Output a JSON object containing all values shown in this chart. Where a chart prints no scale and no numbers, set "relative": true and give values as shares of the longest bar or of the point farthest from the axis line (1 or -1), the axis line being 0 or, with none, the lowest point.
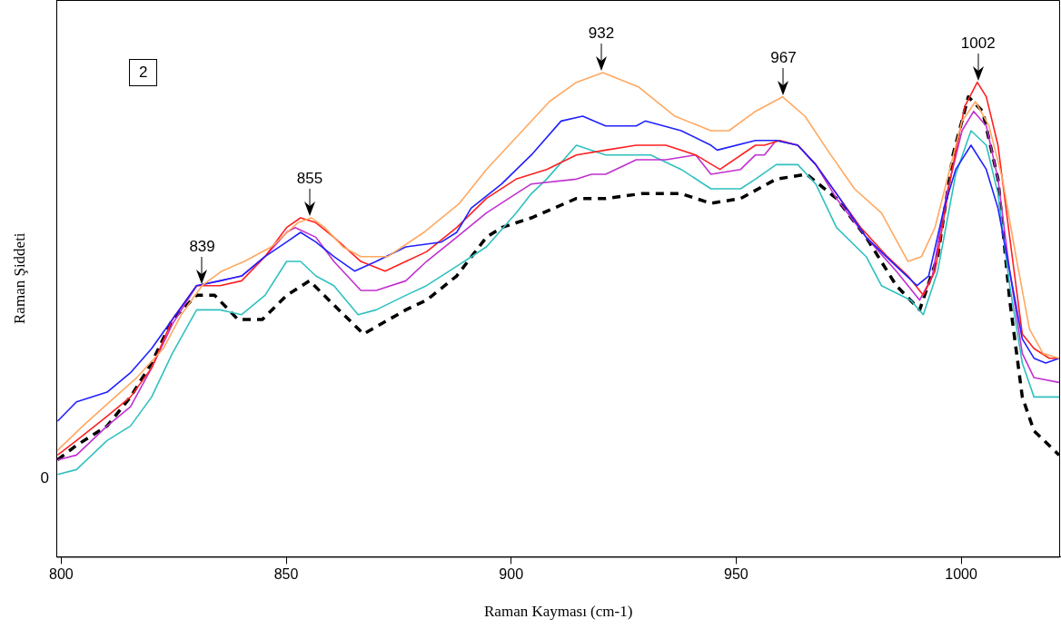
{
  "chart_data": {
    "type": "line",
    "relative": true,
    "xlabel": "Raman Kayması (cm-1)",
    "ylabel": "Raman Şiddeti",
    "xlim": [
      799,
      1022
    ],
    "xticks": [
      800,
      850,
      900,
      950,
      1000
    ],
    "marker": "none",
    "line_style": "solid",
    "annotations": [
      "2",
      "0",
      {
        "text": "839",
        "x": 831.3,
        "y": 0.56
      },
      {
        "text": "855",
        "x": 855.2,
        "y": 0.7
      },
      {
        "text": "932",
        "x": 920,
        "y": 1.0
      },
      {
        "text": "967",
        "x": 960.5,
        "y": 0.95
      },
      {
        "text": "1002",
        "x": 1003.8,
        "y": 0.98
      }
    ],
    "series": [
      {
        "color": "#ffa860",
        "x": [
          799.2,
          804.8,
          810.8,
          816.8,
          822.7,
          826.7,
          831.3,
          835.7,
          840.7,
          846.7,
          852.6,
          855.6,
          858.6,
          862.6,
          866.6,
          872.6,
          880.6,
          888.5,
          894.5,
          900.5,
          908.5,
          914.5,
          920.4,
          928.4,
          936.4,
          944.4,
          948.4,
          954.3,
          960.3,
          965.3,
          970.3,
          976.3,
          982.3,
          988.2,
          991.2,
          994.2,
          997.2,
          1000.2,
          1003.2,
          1006.2,
          1009.2,
          1012.2,
          1015.2,
          1018.2,
          1021.8
        ],
        "values": [
          0.22,
          0.27,
          0.32,
          0.37,
          0.43,
          0.5,
          0.56,
          0.59,
          0.61,
          0.64,
          0.69,
          0.7,
          0.68,
          0.64,
          0.62,
          0.62,
          0.67,
          0.73,
          0.8,
          0.86,
          0.94,
          0.98,
          1.0,
          0.97,
          0.91,
          0.88,
          0.88,
          0.92,
          0.95,
          0.91,
          0.84,
          0.76,
          0.71,
          0.61,
          0.62,
          0.68,
          0.79,
          0.9,
          0.94,
          0.89,
          0.78,
          0.62,
          0.47,
          0.42,
          0.41
        ]
      },
      {
        "color": "#2020ff",
        "x": [
          799.2,
          803.4,
          810.2,
          815.4,
          820.1,
          824.7,
          830.1,
          835.3,
          840.1,
          845.3,
          850.1,
          853.2,
          856.6,
          860.6,
          865.2,
          870.0,
          876.6,
          884.5,
          887.9,
          891.1,
          897.9,
          904.5,
          911.1,
          915.9,
          921.0,
          927.8,
          929.8,
          937.8,
          944.4,
          945.8,
          954.3,
          958.9,
          963.7,
          967.7,
          972.3,
          978.9,
          985.6,
          990.2,
          992.8,
          996.2,
          998.8,
          1002.2,
          1005.6,
          1008.2,
          1010.8,
          1013.6,
          1016.2,
          1018.8,
          1021.8
        ],
        "values": [
          0.28,
          0.32,
          0.34,
          0.38,
          0.43,
          0.49,
          0.56,
          0.57,
          0.58,
          0.62,
          0.65,
          0.67,
          0.65,
          0.62,
          0.59,
          0.61,
          0.64,
          0.65,
          0.67,
          0.72,
          0.77,
          0.83,
          0.9,
          0.91,
          0.89,
          0.89,
          0.9,
          0.88,
          0.85,
          0.84,
          0.86,
          0.86,
          0.85,
          0.81,
          0.75,
          0.66,
          0.6,
          0.56,
          0.58,
          0.72,
          0.8,
          0.85,
          0.8,
          0.72,
          0.59,
          0.45,
          0.41,
          0.4,
          0.41
        ]
      },
      {
        "color": "#ff2020",
        "x": [
          799.2,
          803.4,
          810.2,
          815.4,
          820.1,
          824.7,
          830.1,
          835.3,
          840.1,
          845.3,
          850.1,
          853.2,
          856.6,
          860.6,
          866.6,
          872.0,
          876.6,
          881.2,
          887.9,
          894.5,
          901.1,
          907.9,
          914.5,
          921.0,
          927.8,
          934.4,
          941.0,
          946.4,
          954.3,
          956.3,
          959.7,
          963.7,
          967.7,
          972.3,
          977.7,
          983.6,
          988.2,
          991.6,
          994.2,
          997.6,
          1000.8,
          1003.6,
          1005.6,
          1008.2,
          1010.8,
          1013.6,
          1016.2,
          1019.6,
          1021.8
        ],
        "values": [
          0.21,
          0.24,
          0.29,
          0.33,
          0.39,
          0.49,
          0.56,
          0.56,
          0.57,
          0.62,
          0.68,
          0.7,
          0.69,
          0.66,
          0.61,
          0.59,
          0.61,
          0.63,
          0.68,
          0.74,
          0.78,
          0.8,
          0.83,
          0.84,
          0.85,
          0.85,
          0.83,
          0.8,
          0.85,
          0.85,
          0.86,
          0.85,
          0.81,
          0.75,
          0.68,
          0.62,
          0.58,
          0.54,
          0.59,
          0.78,
          0.93,
          0.98,
          0.95,
          0.85,
          0.66,
          0.46,
          0.43,
          0.41,
          0.41
        ]
      },
      {
        "color": "#c030d0",
        "x": [
          799.2,
          803.4,
          810.2,
          815.4,
          820.1,
          824.7,
          830.1,
          835.3,
          840.1,
          845.3,
          850.1,
          852.0,
          856.6,
          860.6,
          866.6,
          870.0,
          876.6,
          881.2,
          887.9,
          894.5,
          901.1,
          904.5,
          914.5,
          917.9,
          921.0,
          927.8,
          934.4,
          941.0,
          944.4,
          951.0,
          954.3,
          956.3,
          958.9,
          963.7,
          967.7,
          972.3,
          978.9,
          985.6,
          990.8,
          993.6,
          996.8,
          1000.2,
          1002.8,
          1005.6,
          1008.2,
          1010.8,
          1013.6,
          1016.2,
          1021.8
        ],
        "values": [
          0.2,
          0.21,
          0.27,
          0.31,
          0.39,
          0.48,
          0.56,
          0.57,
          0.58,
          0.62,
          0.67,
          0.68,
          0.66,
          0.61,
          0.55,
          0.55,
          0.57,
          0.61,
          0.66,
          0.71,
          0.75,
          0.77,
          0.78,
          0.79,
          0.79,
          0.82,
          0.82,
          0.83,
          0.79,
          0.8,
          0.83,
          0.83,
          0.86,
          0.85,
          0.81,
          0.74,
          0.66,
          0.59,
          0.53,
          0.58,
          0.75,
          0.88,
          0.92,
          0.89,
          0.78,
          0.59,
          0.42,
          0.37,
          0.36
        ]
      },
      {
        "color": "#30c0c0",
        "x": [
          799.2,
          803.4,
          810.2,
          815.4,
          820.1,
          824.7,
          830.1,
          835.3,
          840.1,
          845.3,
          850.1,
          853.2,
          856.6,
          860.6,
          866.0,
          870.0,
          876.6,
          881.2,
          887.9,
          894.5,
          901.1,
          904.5,
          907.9,
          914.5,
          921.0,
          924.4,
          931.0,
          937.8,
          944.4,
          951.0,
          954.3,
          958.9,
          963.7,
          967.7,
          972.3,
          978.9,
          982.3,
          988.8,
          991.6,
          994.8,
          998.8,
          1002.2,
          1005.6,
          1008.2,
          1010.8,
          1013.6,
          1016.2,
          1021.8
        ],
        "values": [
          0.17,
          0.18,
          0.24,
          0.27,
          0.33,
          0.42,
          0.51,
          0.51,
          0.5,
          0.54,
          0.61,
          0.61,
          0.58,
          0.56,
          0.5,
          0.51,
          0.54,
          0.56,
          0.6,
          0.64,
          0.71,
          0.75,
          0.78,
          0.85,
          0.83,
          0.83,
          0.83,
          0.8,
          0.76,
          0.76,
          0.78,
          0.81,
          0.81,
          0.77,
          0.68,
          0.62,
          0.56,
          0.53,
          0.5,
          0.59,
          0.79,
          0.88,
          0.85,
          0.75,
          0.56,
          0.4,
          0.33,
          0.33
        ]
      },
      {
        "color": "#000000",
        "line_style": "dashed",
        "x": [
          799.2,
          803.4,
          810.2,
          815.4,
          820.1,
          824.7,
          830.1,
          834.1,
          839.3,
          844.7,
          850.1,
          855.2,
          860.6,
          867.2,
          876.6,
          881.2,
          887.9,
          894.5,
          897.9,
          904.5,
          914.5,
          921.0,
          929.0,
          937.8,
          944.4,
          951.0,
          958.9,
          965.7,
          972.3,
          978.9,
          985.6,
          990.8,
          994.8,
          998.2,
          1001.6,
          1004.8,
          1008.2,
          1010.8,
          1013.6,
          1016.2,
          1021.8
        ],
        "values": [
          0.2,
          0.23,
          0.27,
          0.33,
          0.4,
          0.49,
          0.54,
          0.54,
          0.49,
          0.49,
          0.54,
          0.57,
          0.52,
          0.46,
          0.51,
          0.53,
          0.58,
          0.66,
          0.68,
          0.7,
          0.74,
          0.74,
          0.75,
          0.75,
          0.73,
          0.74,
          0.78,
          0.79,
          0.74,
          0.66,
          0.56,
          0.51,
          0.62,
          0.83,
          0.95,
          0.92,
          0.78,
          0.53,
          0.33,
          0.26,
          0.21
        ]
      }
    ]
  }
}
